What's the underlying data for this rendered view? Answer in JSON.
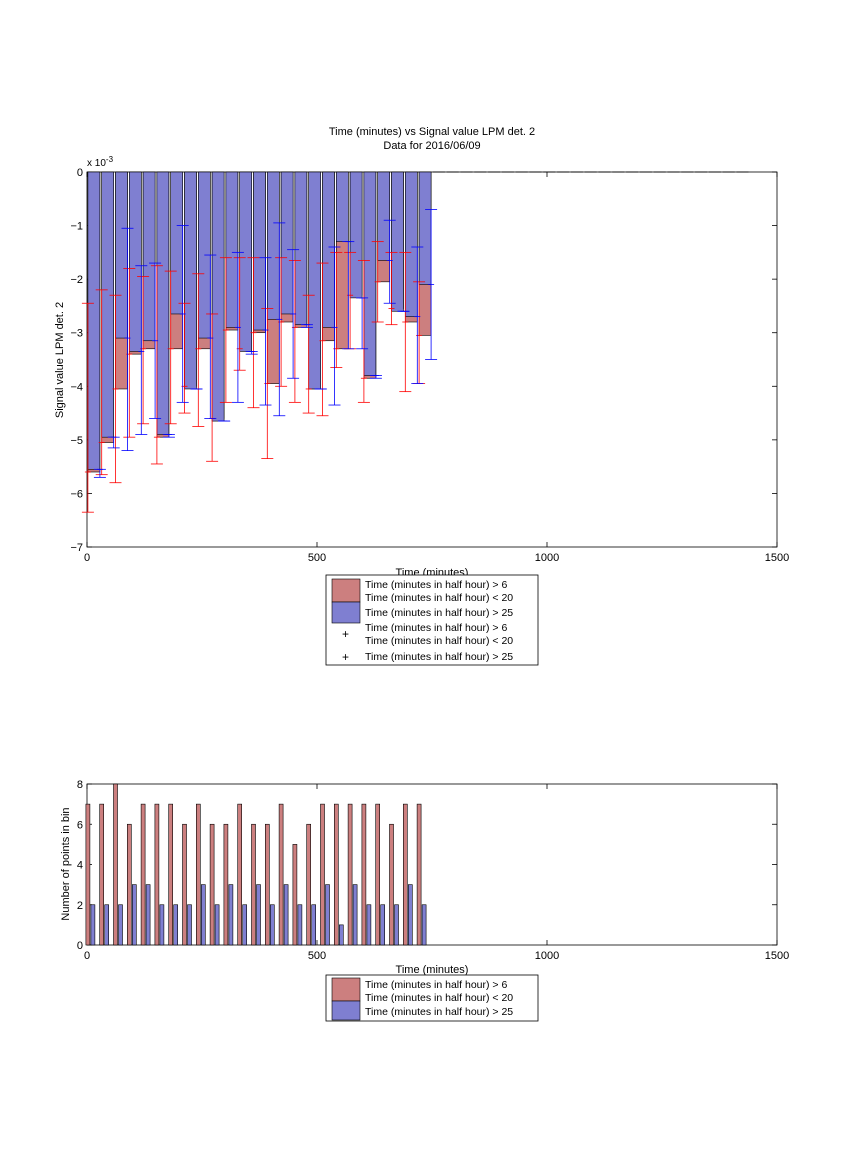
{
  "colors": {
    "pink_bar": "#cc7f7f",
    "blue_bar": "#7f7fd1",
    "red_err": "#ff0000",
    "blue_err": "#0000ff"
  },
  "chart_data": [
    {
      "type": "bar",
      "title": "Time (minutes) vs Signal value LPM det. 2",
      "subtitle": "Data for 2016/06/09",
      "xlabel": "Time (minutes)",
      "ylabel": "Signal value LPM det. 2",
      "y_exponent": "x 10",
      "y_exponent_power": "-3",
      "xlim": [
        0,
        1500
      ],
      "ylim": [
        -7,
        0
      ],
      "y_scale_factor": 0.001,
      "xticks": [
        "0",
        "500",
        "1000",
        "1500"
      ],
      "yticks": [
        "0",
        "−1",
        "−2",
        "−3",
        "−4",
        "−5",
        "−6",
        "−7"
      ],
      "x": [
        15,
        45,
        75,
        105,
        135,
        165,
        195,
        225,
        255,
        285,
        315,
        345,
        375,
        405,
        435,
        465,
        495,
        525,
        555,
        585,
        615,
        645,
        675,
        705,
        735
      ],
      "series": [
        {
          "name": "Time (minutes in half hour) > 6\nTime (minutes in half hour) < 20",
          "values": [
            -5.6,
            -5.05,
            -4.05,
            -3.4,
            -3.3,
            -4.95,
            -3.3,
            -4.0,
            -3.3,
            -4.6,
            -2.95,
            -3.3,
            -3.0,
            -3.95,
            -2.8,
            -2.9,
            -4.05,
            -3.15,
            -3.3,
            -2.3,
            -3.85,
            -2.05,
            -2.55,
            -2.8,
            -3.05
          ],
          "err_low": [
            -6.35,
            -5.65,
            -5.8,
            -4.95,
            -4.7,
            -5.45,
            -4.7,
            -4.5,
            -4.75,
            -5.4,
            -4.3,
            -3.7,
            -4.4,
            -5.35,
            -4.0,
            -4.3,
            -4.5,
            -4.55,
            -3.65,
            -3.3,
            -4.3,
            -2.8,
            -2.85,
            -4.1,
            -3.95
          ],
          "err_high": [
            -2.45,
            -2.2,
            -2.3,
            -1.8,
            -1.95,
            -1.75,
            -1.85,
            -2.45,
            -1.9,
            -2.65,
            -1.6,
            -1.6,
            -1.6,
            -2.55,
            -1.6,
            -1.65,
            -2.3,
            -1.7,
            -1.5,
            -1.5,
            -1.65,
            -1.3,
            -1.5,
            -1.5,
            -2.05
          ]
        },
        {
          "name": "Time (minutes in half hour) > 25",
          "values": [
            -5.55,
            -4.95,
            -3.1,
            -3.35,
            -3.15,
            -4.9,
            -2.65,
            -4.05,
            -3.1,
            -4.65,
            -2.9,
            -3.35,
            -2.95,
            -2.75,
            -2.65,
            -2.85,
            -4.05,
            -2.9,
            -1.3,
            -2.35,
            -3.8,
            -1.65,
            -2.6,
            -2.7,
            -2.1
          ],
          "err_low": [
            -5.7,
            -5.15,
            -5.2,
            -4.9,
            -4.6,
            -4.95,
            -4.3,
            -4.05,
            -4.6,
            -4.65,
            -4.3,
            -3.4,
            -4.35,
            -4.55,
            -3.85,
            -2.9,
            -4.05,
            -4.35,
            -3.3,
            -3.3,
            -3.85,
            -2.45,
            -2.6,
            -3.95,
            -3.5
          ],
          "err_high": [
            -5.55,
            -4.95,
            -1.05,
            -1.75,
            -1.7,
            -4.9,
            -1.0,
            -4.05,
            -1.55,
            -4.65,
            -1.5,
            -3.35,
            -1.6,
            -0.95,
            -1.45,
            -2.85,
            -4.05,
            -1.4,
            -1.3,
            -2.35,
            -3.8,
            -0.9,
            -2.6,
            -1.4,
            -0.7
          ]
        }
      ],
      "placeholder_dash_x": [
        765,
        795,
        825,
        855,
        885,
        915,
        945,
        975,
        1005,
        1035,
        1065,
        1095,
        1125,
        1155,
        1185,
        1215,
        1245,
        1275,
        1305,
        1335,
        1365,
        1395,
        1425
      ],
      "legend": [
        "Time (minutes in half hour) > 6",
        "Time (minutes in half hour) < 20",
        "Time (minutes in half hour) > 25",
        "Time (minutes in half hour) > 6",
        "Time (minutes in half hour) < 20",
        "Time (minutes in half hour) > 25"
      ],
      "legend_placement": "below"
    },
    {
      "type": "bar",
      "xlabel": "Time (minutes)",
      "ylabel": "Number of points in bin",
      "xlim": [
        0,
        1500
      ],
      "ylim": [
        0,
        8
      ],
      "xticks": [
        "0",
        "500",
        "1000",
        "1500"
      ],
      "yticks": [
        "8",
        "6",
        "4",
        "2",
        "0"
      ],
      "x": [
        15,
        45,
        75,
        105,
        135,
        165,
        195,
        225,
        255,
        285,
        315,
        345,
        375,
        405,
        435,
        465,
        495,
        525,
        555,
        585,
        615,
        645,
        675,
        705,
        735
      ],
      "series": [
        {
          "name": "Time (minutes in half hour) > 6\nTime (minutes in half hour) < 20",
          "values": [
            7,
            7,
            8,
            6,
            7,
            7,
            7,
            6,
            7,
            6,
            6,
            7,
            6,
            6,
            7,
            5,
            6,
            7,
            7,
            7,
            7,
            7,
            6,
            7,
            7
          ]
        },
        {
          "name": "Time (minutes in half hour) > 25",
          "values": [
            2,
            2,
            2,
            3,
            3,
            2,
            2,
            2,
            3,
            2,
            3,
            2,
            3,
            2,
            3,
            2,
            2,
            3,
            1,
            3,
            2,
            2,
            2,
            3,
            2
          ]
        }
      ],
      "legend": [
        "Time (minutes in half hour) > 6",
        "Time (minutes in half hour) < 20",
        "Time (minutes in half hour) > 25"
      ],
      "legend_placement": "below"
    }
  ]
}
